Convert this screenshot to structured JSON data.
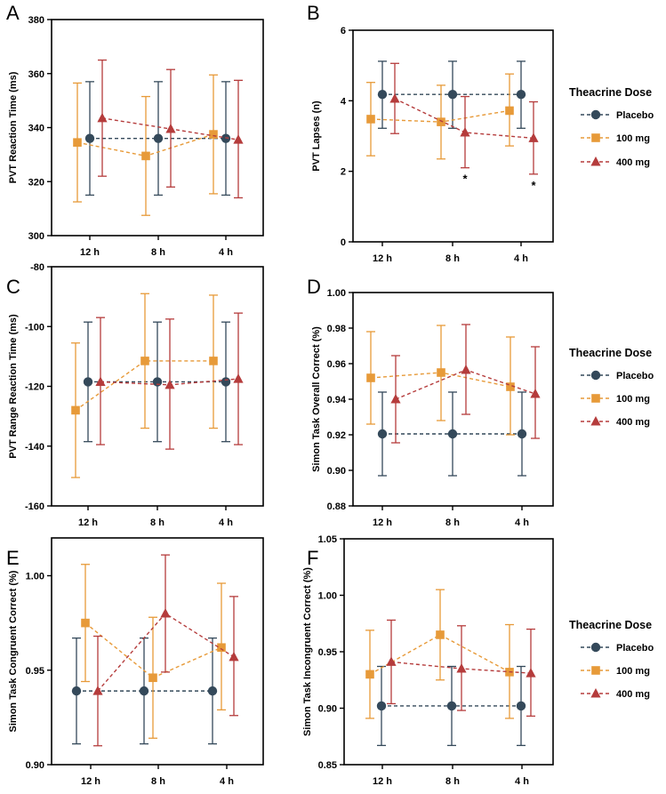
{
  "colors": {
    "placebo": "#34495a",
    "mg100": "#e79a39",
    "mg400": "#b53c3c",
    "axis": "#000000"
  },
  "legend": {
    "title": "Theacrine Dose",
    "items": [
      {
        "label": "Placebo",
        "marker": "circle",
        "color": "#34495a"
      },
      {
        "label": "100 mg",
        "marker": "square",
        "color": "#e79a39"
      },
      {
        "label": "400 mg",
        "marker": "triangle",
        "color": "#b53c3c"
      }
    ]
  },
  "chart_data": [
    {
      "panel": "A",
      "type": "line",
      "ylabel": "PVT Reaction Time (ms)",
      "categories": [
        "12 h",
        "8 h",
        "4 h"
      ],
      "ylim": [
        300,
        380
      ],
      "yticks": [
        "300",
        "320",
        "340",
        "360",
        "380"
      ],
      "series": [
        {
          "name": "Placebo",
          "values": [
            336,
            336,
            336
          ],
          "err_low": [
            315,
            315,
            315
          ],
          "err_high": [
            357,
            357,
            357
          ]
        },
        {
          "name": "100 mg",
          "values": [
            334.5,
            329.5,
            337.5
          ],
          "err_low": [
            312.5,
            307.5,
            315.5
          ],
          "err_high": [
            356.5,
            351.5,
            359.5
          ]
        },
        {
          "name": "400 mg",
          "values": [
            343.5,
            339.5,
            335.5
          ],
          "err_low": [
            322,
            318,
            314
          ],
          "err_high": [
            365,
            361.5,
            357.5
          ]
        }
      ],
      "annotations": []
    },
    {
      "panel": "B",
      "type": "line",
      "ylabel": "PVT Lapses (n)",
      "categories": [
        "12 h",
        "8 h",
        "4 h"
      ],
      "ylim": [
        0,
        6
      ],
      "yticks": [
        "0",
        "2",
        "4",
        "6"
      ],
      "series": [
        {
          "name": "Placebo",
          "values": [
            4.18,
            4.18,
            4.18
          ],
          "err_low": [
            3.22,
            3.22,
            3.22
          ],
          "err_high": [
            5.12,
            5.12,
            5.12
          ]
        },
        {
          "name": "100 mg",
          "values": [
            3.48,
            3.4,
            3.72
          ],
          "err_low": [
            2.44,
            2.35,
            2.72
          ],
          "err_high": [
            4.52,
            4.44,
            4.76
          ]
        },
        {
          "name": "400 mg",
          "values": [
            4.06,
            3.1,
            2.94
          ],
          "err_low": [
            3.07,
            2.1,
            1.92
          ],
          "err_high": [
            5.06,
            4.12,
            3.97
          ]
        }
      ],
      "annotations": [
        {
          "text": "*",
          "category": "8 h",
          "series": "400 mg"
        },
        {
          "text": "*",
          "category": "4 h",
          "series": "400 mg"
        }
      ]
    },
    {
      "panel": "C",
      "type": "line",
      "ylabel": "PVT Range Reaction Time (ms)",
      "categories": [
        "12 h",
        "8 h",
        "4 h"
      ],
      "ylim": [
        -160,
        -80
      ],
      "yticks": [
        "-160",
        "-140",
        "-120",
        "-100",
        "-80"
      ],
      "series": [
        {
          "name": "Placebo",
          "values": [
            -118.5,
            -118.5,
            -118.5
          ],
          "err_low": [
            -138.5,
            -138.5,
            -138.5
          ],
          "err_high": [
            -98.5,
            -98.5,
            -98.5
          ]
        },
        {
          "name": "100 mg",
          "values": [
            -128,
            -111.5,
            -111.5
          ],
          "err_low": [
            -150.5,
            -134,
            -134
          ],
          "err_high": [
            -105.5,
            -89,
            -89.5
          ]
        },
        {
          "name": "400 mg",
          "values": [
            -118.5,
            -119.5,
            -117.5
          ],
          "err_low": [
            -139.5,
            -141,
            -139.5
          ],
          "err_high": [
            -97,
            -97.5,
            -95.5
          ]
        }
      ],
      "annotations": []
    },
    {
      "panel": "D",
      "type": "line",
      "ylabel": "Simon Task Overall Correct (%)",
      "categories": [
        "12 h",
        "8 h",
        "4 h"
      ],
      "ylim": [
        0.88,
        1.0
      ],
      "yticks": [
        "0.88",
        "0.90",
        "0.92",
        "0.94",
        "0.96",
        "0.98",
        "1.00"
      ],
      "series": [
        {
          "name": "Placebo",
          "values": [
            0.9205,
            0.9205,
            0.9205
          ],
          "err_low": [
            0.897,
            0.897,
            0.897
          ],
          "err_high": [
            0.944,
            0.944,
            0.944
          ]
        },
        {
          "name": "100 mg",
          "values": [
            0.952,
            0.955,
            0.947
          ],
          "err_low": [
            0.926,
            0.928,
            0.92
          ],
          "err_high": [
            0.978,
            0.9815,
            0.975
          ]
        },
        {
          "name": "400 mg",
          "values": [
            0.94,
            0.9565,
            0.943
          ],
          "err_low": [
            0.9155,
            0.9315,
            0.918
          ],
          "err_high": [
            0.9645,
            0.982,
            0.9695
          ]
        }
      ],
      "annotations": []
    },
    {
      "panel": "E",
      "type": "line",
      "ylabel": "Simon Task Congruent Correct (%)",
      "categories": [
        "12 h",
        "8 h",
        "4 h"
      ],
      "ylim": [
        0.9,
        1.02
      ],
      "yticks": [
        "0.90",
        "0.95",
        "1.00"
      ],
      "series": [
        {
          "name": "Placebo",
          "values": [
            0.939,
            0.939,
            0.939
          ],
          "err_low": [
            0.911,
            0.911,
            0.911
          ],
          "err_high": [
            0.967,
            0.967,
            0.967
          ]
        },
        {
          "name": "100 mg",
          "values": [
            0.975,
            0.946,
            0.962
          ],
          "err_low": [
            0.944,
            0.914,
            0.929
          ],
          "err_high": [
            1.006,
            0.978,
            0.996
          ]
        },
        {
          "name": "400 mg",
          "values": [
            0.939,
            0.98,
            0.957
          ],
          "err_low": [
            0.91,
            0.949,
            0.926
          ],
          "err_high": [
            0.968,
            1.011,
            0.989
          ]
        }
      ],
      "annotations": []
    },
    {
      "panel": "F",
      "type": "line",
      "ylabel": "Simon Task Incongruent Correct (%)",
      "categories": [
        "12 h",
        "8 h",
        "4 h"
      ],
      "ylim": [
        0.85,
        1.05
      ],
      "yticks": [
        "0.85",
        "0.90",
        "0.95",
        "1.00",
        "1.05"
      ],
      "series": [
        {
          "name": "Placebo",
          "values": [
            0.902,
            0.902,
            0.902
          ],
          "err_low": [
            0.867,
            0.867,
            0.867
          ],
          "err_high": [
            0.937,
            0.937,
            0.937
          ]
        },
        {
          "name": "100 mg",
          "values": [
            0.93,
            0.965,
            0.932
          ],
          "err_low": [
            0.891,
            0.925,
            0.891
          ],
          "err_high": [
            0.969,
            1.005,
            0.974
          ]
        },
        {
          "name": "400 mg",
          "values": [
            0.941,
            0.935,
            0.931
          ],
          "err_low": [
            0.904,
            0.898,
            0.893
          ],
          "err_high": [
            0.978,
            0.973,
            0.97
          ]
        }
      ],
      "annotations": []
    }
  ]
}
